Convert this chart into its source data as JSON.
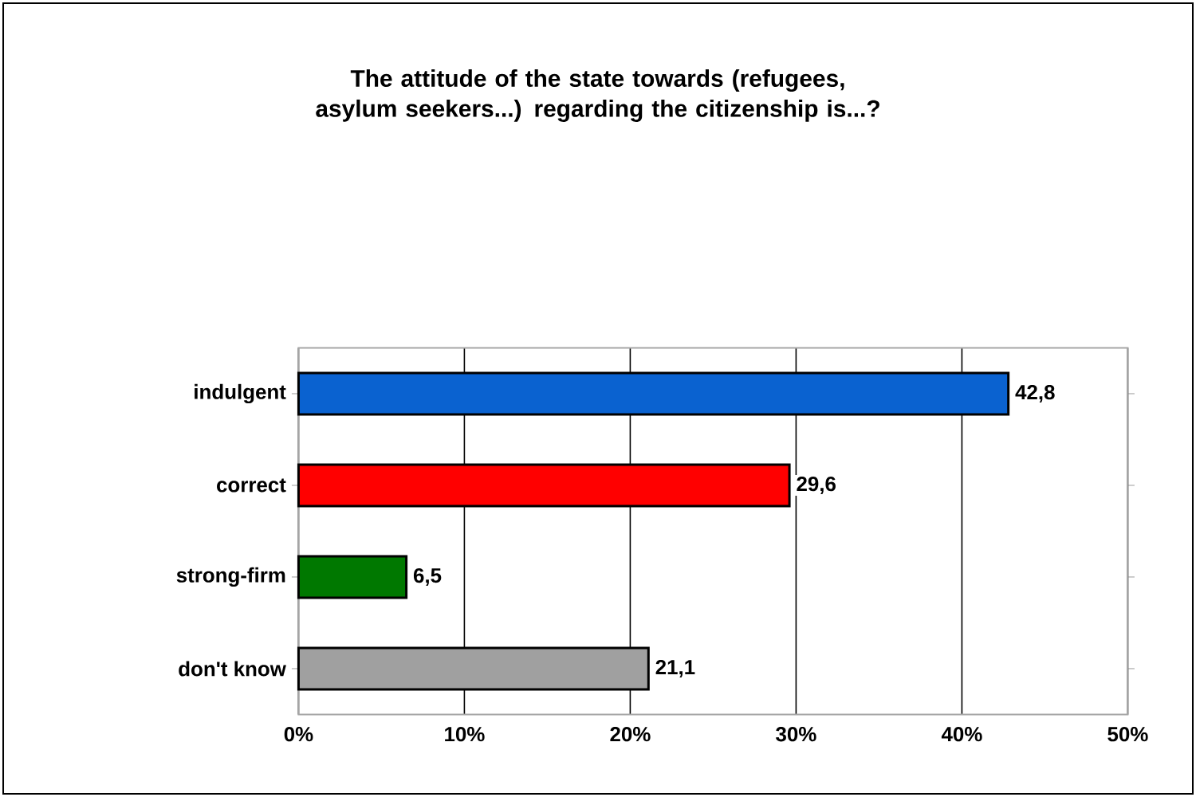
{
  "chart_data": {
    "type": "bar",
    "orientation": "horizontal",
    "title": "The attitude of the state towards (refugees, asylum seekers...) regarding the citizenship is...?",
    "categories": [
      "indulgent",
      "correct",
      "strong-firm",
      "don't know"
    ],
    "values": [
      42.8,
      29.6,
      6.5,
      21.1
    ],
    "colors": [
      "#0a62d0",
      "#ff0000",
      "#007800",
      "#a0a0a0"
    ],
    "value_labels": [
      "42,8",
      "29,6",
      "6,5",
      "21,1"
    ],
    "xlim": [
      0,
      50
    ],
    "xticks": [
      {
        "value": 0,
        "label": "0%"
      },
      {
        "value": 10,
        "label": "10%"
      },
      {
        "value": 20,
        "label": "20%"
      },
      {
        "value": 30,
        "label": "30%"
      },
      {
        "value": 40,
        "label": "40%"
      },
      {
        "value": 50,
        "label": "50%"
      }
    ],
    "grid": "x"
  }
}
